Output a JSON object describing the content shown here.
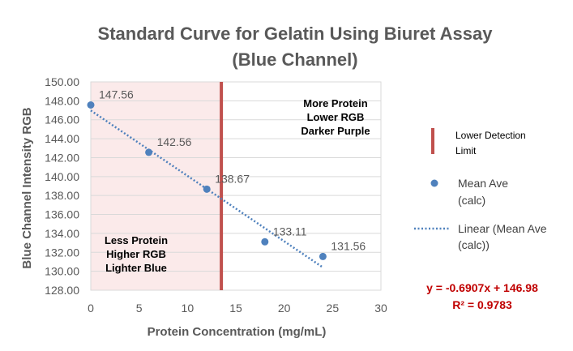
{
  "chart_data": {
    "type": "scatter",
    "title_line1": "Standard Curve for Gelatin Using Biuret Assay",
    "title_line2": "(Blue Channel)",
    "xlabel": "Protein Concentration (mg/mL)",
    "ylabel": "Blue Channel Intensity RGB",
    "xlim": [
      0,
      30
    ],
    "ylim": [
      128,
      150
    ],
    "x_ticks": [
      "0",
      "5",
      "10",
      "15",
      "20",
      "25",
      "30"
    ],
    "y_ticks": [
      "128.00",
      "130.00",
      "132.00",
      "134.00",
      "136.00",
      "138.00",
      "140.00",
      "142.00",
      "144.00",
      "146.00",
      "148.00",
      "150.00"
    ],
    "grid": "horizontal",
    "series": [
      {
        "name": "Mean Ave (calc)",
        "x": [
          0,
          6,
          12,
          18,
          24
        ],
        "y": [
          147.56,
          142.56,
          138.67,
          133.11,
          131.56
        ],
        "labels": [
          "147.56",
          "142.56",
          "138.67",
          "133.11",
          "131.56"
        ],
        "color": "#4f81bd"
      }
    ],
    "trendline": {
      "name": "Linear (Mean Ave (calc))",
      "slope": -0.6907,
      "intercept": 146.98,
      "x_range": [
        0,
        24
      ],
      "color": "#4f81bd",
      "style": "dotted"
    },
    "detection_limit": {
      "name": "Lower Detection Limit",
      "x": 13.5,
      "color": "#c0504d"
    },
    "shaded_region": {
      "x_range": [
        0,
        13.5
      ],
      "color": "#fbeaea"
    },
    "legend_placement": "right",
    "annotations": {
      "more_protein": [
        "More Protein",
        "Lower RGB",
        "Darker Purple"
      ],
      "more_protein_color": "#7030a0",
      "less_protein": [
        "Less Protein",
        "Higher RGB",
        "Lighter Blue"
      ],
      "less_protein_color": "#17a2c8",
      "equation": "y = -0.6907x + 146.98",
      "r2": "R² = 0.9783"
    },
    "legend": {
      "detection_line1": "Lower Detection",
      "detection_line2": "Limit",
      "mean_line1": "Mean Ave",
      "mean_line2": "(calc)",
      "linear_line1": "Linear (Mean Ave",
      "linear_line2": "(calc))"
    }
  }
}
